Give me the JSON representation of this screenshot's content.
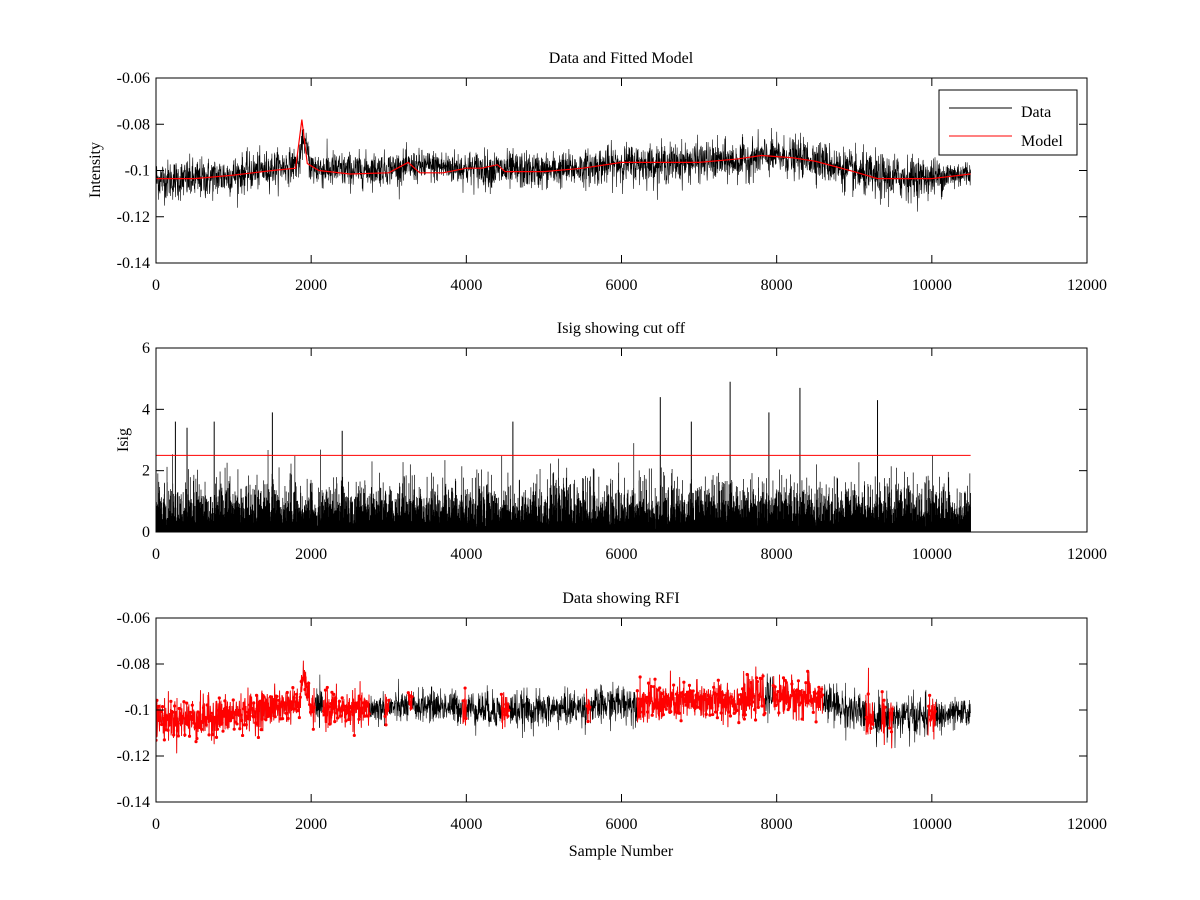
{
  "chart_data": [
    {
      "type": "line",
      "title": "Data and Fitted Model",
      "xlabel": "",
      "ylabel": "Intensity",
      "xlim": [
        0,
        12000
      ],
      "ylim": [
        -0.14,
        -0.06
      ],
      "xticks": [
        0,
        2000,
        4000,
        6000,
        8000,
        10000,
        12000
      ],
      "xtick_labels": [
        "0",
        "2000",
        "4000",
        "6000",
        "8000",
        "10000",
        "12000"
      ],
      "yticks": [
        -0.14,
        -0.12,
        -0.1,
        -0.08,
        -0.06
      ],
      "ytick_labels": [
        "-0.14",
        "-0.12",
        "-0.1",
        "-0.08",
        "-0.06"
      ],
      "legend": {
        "placement": "top-right",
        "entries": [
          {
            "label": "Data",
            "color": "#000000"
          },
          {
            "label": "Model",
            "color": "#ff0000"
          }
        ]
      },
      "series": [
        {
          "name": "Data",
          "color": "#000000",
          "style": "noisy-trace",
          "x": [
            0,
            500,
            1000,
            1500,
            1850,
            1900,
            2000,
            2500,
            3000,
            3500,
            4000,
            4500,
            5000,
            5500,
            6000,
            6500,
            7000,
            7500,
            7800,
            8000,
            8500,
            9000,
            9300,
            9500,
            10000,
            10500
          ],
          "center": [
            -0.104,
            -0.104,
            -0.102,
            -0.099,
            -0.097,
            -0.085,
            -0.099,
            -0.1,
            -0.099,
            -0.098,
            -0.099,
            -0.1,
            -0.1,
            -0.099,
            -0.097,
            -0.097,
            -0.096,
            -0.096,
            -0.094,
            -0.094,
            -0.095,
            -0.101,
            -0.103,
            -0.103,
            -0.103,
            -0.101
          ],
          "spread": [
            0.011,
            0.012,
            0.011,
            0.01,
            0.009,
            0.007,
            0.011,
            0.01,
            0.009,
            0.009,
            0.01,
            0.011,
            0.01,
            0.01,
            0.011,
            0.011,
            0.011,
            0.011,
            0.011,
            0.011,
            0.011,
            0.012,
            0.013,
            0.013,
            0.011,
            0.007
          ]
        },
        {
          "name": "Model",
          "color": "#ff0000",
          "style": "line",
          "x": [
            0,
            500,
            1000,
            1500,
            1800,
            1880,
            1950,
            2100,
            2500,
            3000,
            3250,
            3400,
            3700,
            4000,
            4200,
            4400,
            4500,
            5000,
            5500,
            6000,
            6500,
            7000,
            7500,
            7800,
            8200,
            8500,
            9000,
            9300,
            10000,
            10500
          ],
          "y": [
            -0.1035,
            -0.1035,
            -0.102,
            -0.1,
            -0.099,
            -0.078,
            -0.097,
            -0.1,
            -0.1015,
            -0.101,
            -0.0965,
            -0.101,
            -0.101,
            -0.099,
            -0.099,
            -0.0975,
            -0.1005,
            -0.1005,
            -0.099,
            -0.0965,
            -0.0965,
            -0.0965,
            -0.095,
            -0.0935,
            -0.0945,
            -0.096,
            -0.1005,
            -0.1035,
            -0.1035,
            -0.1015
          ]
        }
      ]
    },
    {
      "type": "line",
      "title": "Isig showing cut off",
      "xlabel": "",
      "ylabel": "Isig",
      "xlim": [
        0,
        12000
      ],
      "ylim": [
        0,
        6
      ],
      "xticks": [
        0,
        2000,
        4000,
        6000,
        8000,
        10000,
        12000
      ],
      "xtick_labels": [
        "0",
        "2000",
        "4000",
        "6000",
        "8000",
        "10000",
        "12000"
      ],
      "yticks": [
        0,
        2,
        4,
        6
      ],
      "ytick_labels": [
        "0",
        "2",
        "4",
        "6"
      ],
      "series": [
        {
          "color": "#000000",
          "style": "noisy-nonnegative",
          "x_range": [
            0,
            10500
          ],
          "typical_max": 2.5,
          "peaks": [
            {
              "x": 250,
              "y": 3.6
            },
            {
              "x": 400,
              "y": 3.4
            },
            {
              "x": 750,
              "y": 3.6
            },
            {
              "x": 1500,
              "y": 3.9
            },
            {
              "x": 2400,
              "y": 3.3
            },
            {
              "x": 4600,
              "y": 3.6
            },
            {
              "x": 6500,
              "y": 4.4
            },
            {
              "x": 6900,
              "y": 3.6
            },
            {
              "x": 7400,
              "y": 4.9
            },
            {
              "x": 7900,
              "y": 3.9
            },
            {
              "x": 8300,
              "y": 4.7
            },
            {
              "x": 9300,
              "y": 4.3
            }
          ]
        },
        {
          "color": "#ff0000",
          "style": "cutoff-line",
          "x": [
            0,
            10500
          ],
          "y": [
            2.5,
            2.5
          ]
        }
      ]
    },
    {
      "type": "line",
      "title": "Data showing RFI",
      "xlabel": "Sample Number",
      "ylabel": "",
      "xlim": [
        0,
        12000
      ],
      "ylim": [
        -0.14,
        -0.06
      ],
      "xticks": [
        0,
        2000,
        4000,
        6000,
        8000,
        10000,
        12000
      ],
      "xtick_labels": [
        "0",
        "2000",
        "4000",
        "6000",
        "8000",
        "10000",
        "12000"
      ],
      "yticks": [
        -0.14,
        -0.12,
        -0.1,
        -0.08,
        -0.06
      ],
      "ytick_labels": [
        "-0.14",
        "-0.12",
        "-0.1",
        "-0.08",
        "-0.06"
      ],
      "series": [
        {
          "color": "#000000",
          "style": "noisy-trace",
          "x": [
            0,
            500,
            1000,
            1500,
            1850,
            1900,
            2000,
            2500,
            3000,
            3500,
            4000,
            4500,
            5000,
            5500,
            6000,
            6500,
            7000,
            7500,
            7800,
            8000,
            8500,
            9000,
            9300,
            9500,
            10000,
            10500
          ],
          "center": [
            -0.104,
            -0.104,
            -0.102,
            -0.099,
            -0.097,
            -0.085,
            -0.099,
            -0.1,
            -0.099,
            -0.098,
            -0.099,
            -0.1,
            -0.1,
            -0.099,
            -0.097,
            -0.097,
            -0.096,
            -0.096,
            -0.094,
            -0.094,
            -0.095,
            -0.101,
            -0.103,
            -0.103,
            -0.103,
            -0.101
          ],
          "spread": [
            0.011,
            0.012,
            0.011,
            0.01,
            0.009,
            0.007,
            0.011,
            0.01,
            0.009,
            0.009,
            0.01,
            0.011,
            0.01,
            0.01,
            0.011,
            0.011,
            0.011,
            0.011,
            0.011,
            0.011,
            0.011,
            0.012,
            0.013,
            0.013,
            0.011,
            0.007
          ]
        },
        {
          "color": "#ff0000",
          "style": "flagged-markers",
          "flagged_ranges": [
            [
              0,
              2050
            ],
            [
              2150,
              2750
            ],
            [
              2950,
              3000
            ],
            [
              3250,
              3300
            ],
            [
              3950,
              4000
            ],
            [
              4450,
              4550
            ],
            [
              5550,
              5600
            ],
            [
              6200,
              7850
            ],
            [
              7950,
              8600
            ],
            [
              9150,
              9250
            ],
            [
              9350,
              9400
            ],
            [
              9450,
              9500
            ],
            [
              9950,
              10050
            ]
          ]
        }
      ]
    }
  ]
}
